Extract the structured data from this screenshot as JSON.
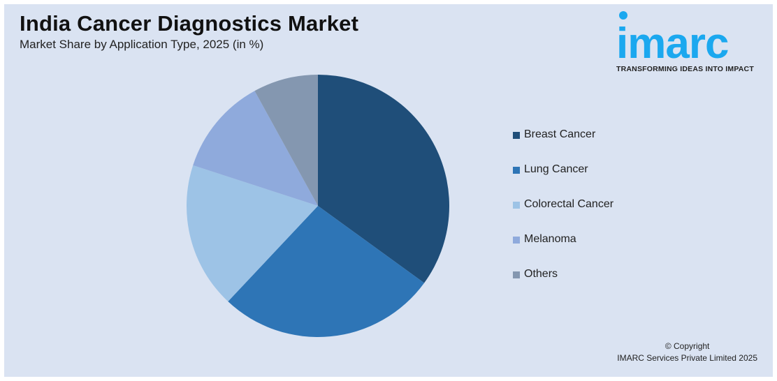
{
  "header": {
    "title": "India Cancer Diagnostics Market",
    "subtitle": "Market Share by Application Type, 2025 (in %)"
  },
  "logo": {
    "wordmark": "imarc",
    "tagline": "TRANSFORMING IDEAS INTO IMPACT",
    "color": "#1ba8ef"
  },
  "legend": {
    "items": [
      {
        "label": "Breast Cancer",
        "color": "#1f4e79"
      },
      {
        "label": "Lung Cancer",
        "color": "#2e75b6"
      },
      {
        "label": "Colorectal Cancer",
        "color": "#9dc3e6"
      },
      {
        "label": "Melanoma",
        "color": "#8faadc"
      },
      {
        "label": "Others",
        "color": "#8497b0"
      }
    ]
  },
  "footer": {
    "copyright_line1": "© Copyright",
    "copyright_line2": "IMARC Services Private Limited 2025"
  },
  "chart_data": {
    "type": "pie",
    "title": "India Cancer Diagnostics Market",
    "subtitle": "Market Share by Application Type, 2025 (in %)",
    "categories": [
      "Breast Cancer",
      "Lung Cancer",
      "Colorectal Cancer",
      "Melanoma",
      "Others"
    ],
    "values": [
      35,
      27,
      18,
      12,
      8
    ],
    "colors": [
      "#1f4e79",
      "#2e75b6",
      "#9dc3e6",
      "#8faadc",
      "#8497b0"
    ],
    "start_angle": "12 o'clock, clockwise",
    "legend_position": "right",
    "data_labels": false
  }
}
